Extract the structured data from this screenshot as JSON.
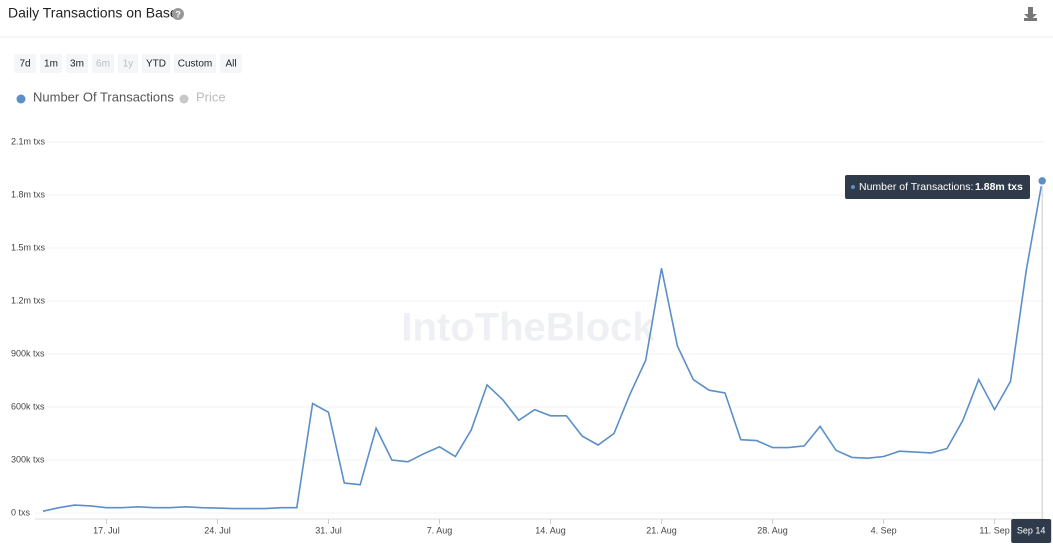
{
  "title": "Daily Transactions on Base",
  "range_buttons": [
    "7d",
    "1m",
    "3m",
    "6m",
    "1y",
    "YTD",
    "Custom",
    "All"
  ],
  "disabled_buttons": [
    3,
    4
  ],
  "watermark": "IntoTheBlock",
  "chart_data": {
    "type": "line",
    "categories": [
      null,
      null,
      null,
      null,
      "17. Jul",
      null,
      null,
      null,
      null,
      null,
      null,
      "24. Jul",
      null,
      null,
      null,
      null,
      null,
      null,
      "31. Jul",
      null,
      null,
      null,
      null,
      null,
      null,
      "7. Aug",
      null,
      null,
      null,
      null,
      null,
      null,
      "14. Aug",
      null,
      null,
      null,
      null,
      null,
      null,
      "21. Aug",
      null,
      null,
      null,
      null,
      null,
      null,
      "28. Aug",
      null,
      null,
      null,
      null,
      null,
      null,
      "4. Sep",
      null,
      null,
      null,
      null,
      null,
      null,
      "11. Sep",
      null,
      null,
      "Sep 14"
    ],
    "series": [
      {
        "name": "Number Of Transactions",
        "color": "#5b8fc7",
        "values": [
          10000,
          30000,
          45000,
          40000,
          30000,
          30000,
          35000,
          30000,
          30000,
          35000,
          30000,
          28000,
          25000,
          25000,
          25000,
          30000,
          30000,
          620000,
          570000,
          170000,
          160000,
          480000,
          300000,
          290000,
          335000,
          375000,
          320000,
          470000,
          725000,
          640000,
          525000,
          585000,
          550000,
          550000,
          435000,
          385000,
          450000,
          670000,
          865000,
          1385000,
          945000,
          755000,
          695000,
          680000,
          415000,
          410000,
          370000,
          370000,
          380000,
          490000,
          355000,
          315000,
          310000,
          320000,
          350000,
          345000,
          340000,
          365000,
          525000,
          755000,
          585000,
          745000,
          1375000,
          1880000
        ]
      }
    ],
    "hidden_series": [
      {
        "name": "Price",
        "color": "#c8c8c8"
      }
    ],
    "ylim": [
      0,
      2100000
    ],
    "yticks": [
      {
        "value": 0,
        "label": "0 txs"
      },
      {
        "value": 300000,
        "label": "300k txs"
      },
      {
        "value": 600000,
        "label": "600k txs"
      },
      {
        "value": 900000,
        "label": "900k txs"
      },
      {
        "value": 1200000,
        "label": "1.2m txs"
      },
      {
        "value": 1500000,
        "label": "1.5m txs"
      },
      {
        "value": 1800000,
        "label": "1.8m txs"
      },
      {
        "value": 2100000,
        "label": "2.1m txs"
      }
    ],
    "grid": true,
    "tooltip": {
      "label": "Number of Transactions:",
      "value_label": "1.88m txs"
    }
  }
}
